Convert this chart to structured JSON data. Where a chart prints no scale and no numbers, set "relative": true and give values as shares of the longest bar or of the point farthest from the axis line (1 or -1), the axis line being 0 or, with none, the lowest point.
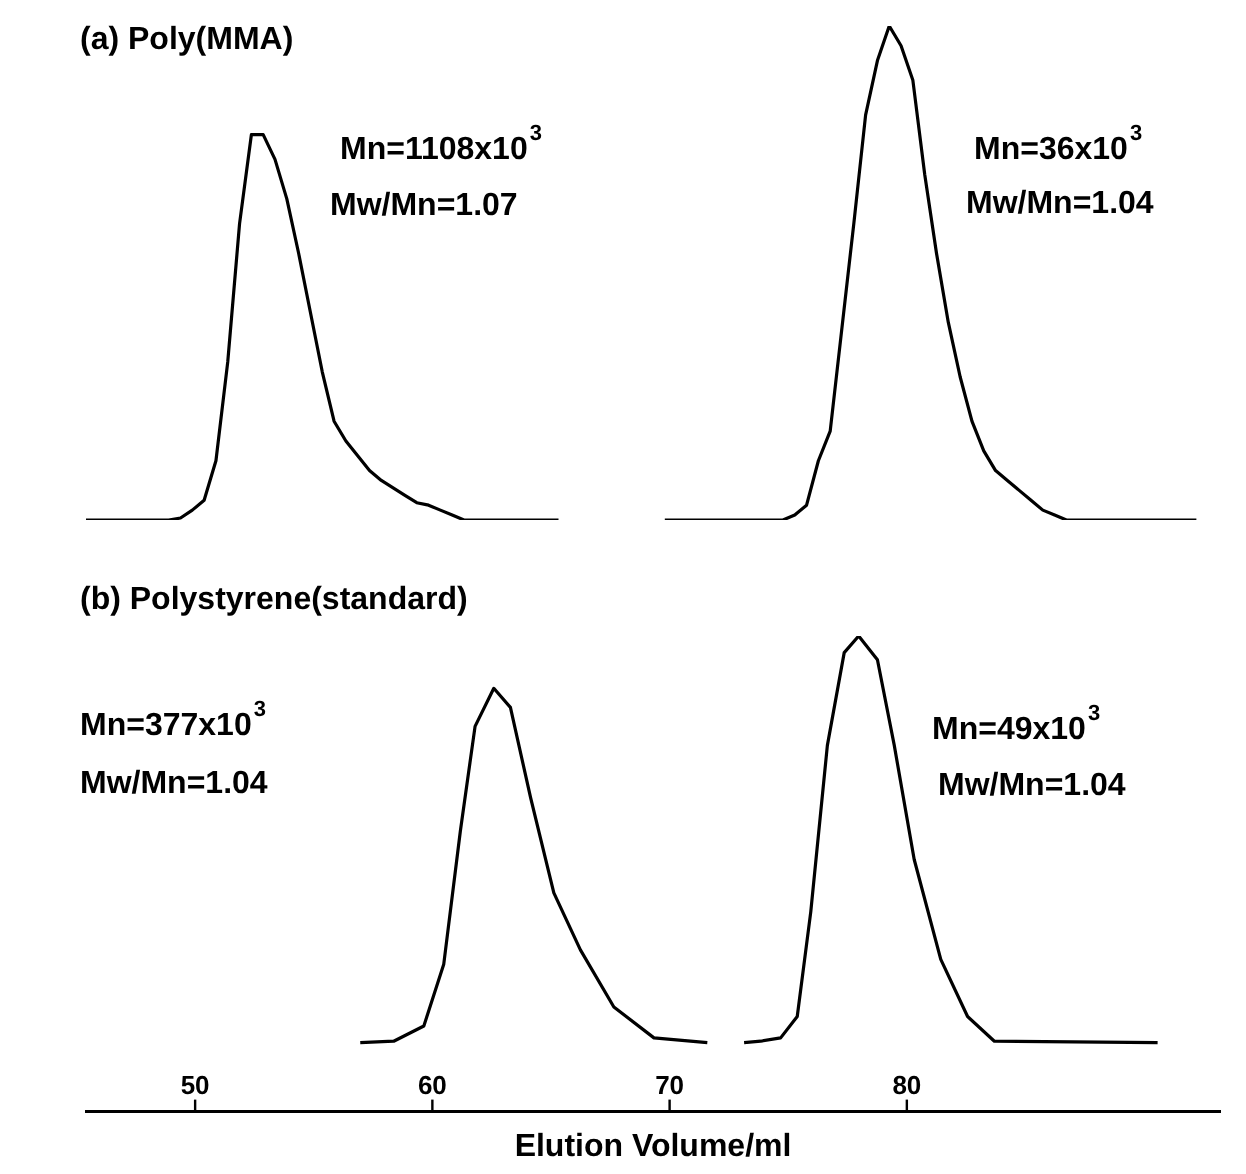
{
  "chart_data": [
    {
      "type": "line",
      "title": "(a) Poly(MMA)",
      "relative": true,
      "tick_labels": false,
      "grid": false,
      "legend": false,
      "marker": "none",
      "line_style": "solid",
      "categories": [
        null,
        null,
        null,
        null,
        null,
        null,
        null,
        null,
        null,
        null,
        null,
        null,
        null,
        null,
        null,
        null,
        null,
        null,
        null,
        null,
        null,
        null,
        null,
        null,
        null,
        null,
        null,
        null,
        null,
        null,
        null,
        null,
        null,
        null,
        null,
        null,
        null,
        null,
        null,
        null,
        null,
        null,
        null,
        null,
        null,
        null,
        null,
        null,
        null,
        null,
        null,
        null,
        null,
        null,
        null,
        null,
        null,
        null,
        null,
        null,
        null,
        null,
        null,
        null,
        null,
        null,
        null,
        null,
        null,
        null,
        null,
        null,
        null,
        null,
        null,
        null,
        null,
        null,
        null,
        null,
        null,
        null,
        null,
        null,
        null,
        null,
        null,
        null,
        null,
        null,
        null,
        null,
        null,
        null,
        null,
        null,
        null
      ],
      "series": [
        {
          "color": "#000000",
          "values": [
            0,
            0,
            0,
            0,
            0,
            0,
            0,
            0,
            0.004,
            0.02,
            0.04,
            0.12,
            0.32,
            0.6,
            0.78,
            0.78,
            0.73,
            0.65,
            0.54,
            0.42,
            0.3,
            0.2,
            0.16,
            0.13,
            0.1,
            0.08,
            0.065,
            0.05,
            0.035,
            0.03,
            0.02,
            0.01,
            0,
            0,
            0,
            0,
            0,
            0,
            0,
            0,
            0,
            null,
            null,
            null,
            null,
            null,
            null,
            null,
            null,
            null,
            null,
            null,
            null,
            null,
            null,
            null,
            null,
            null,
            null,
            null,
            null,
            null,
            null,
            null,
            null,
            null,
            null,
            null,
            null,
            null,
            null,
            null,
            null,
            null,
            null,
            null,
            null,
            null,
            null,
            null,
            null,
            null,
            null,
            null,
            null,
            null,
            null,
            null,
            null,
            null,
            null,
            null,
            null,
            null,
            null,
            null,
            null
          ]
        },
        {
          "color": "#000000",
          "values": [
            null,
            null,
            null,
            null,
            null,
            null,
            null,
            null,
            null,
            null,
            null,
            null,
            null,
            null,
            null,
            null,
            null,
            null,
            null,
            null,
            null,
            null,
            null,
            null,
            null,
            null,
            null,
            null,
            null,
            null,
            null,
            null,
            null,
            null,
            null,
            null,
            null,
            null,
            null,
            null,
            null,
            null,
            null,
            null,
            null,
            null,
            null,
            null,
            null,
            0,
            0,
            0,
            0,
            0,
            0,
            0,
            0,
            0,
            0,
            0,
            0.01,
            0.03,
            0.12,
            0.18,
            0.39,
            0.6,
            0.82,
            0.93,
            1,
            0.96,
            0.89,
            0.7,
            0.54,
            0.4,
            0.29,
            0.2,
            0.14,
            0.1,
            0.08,
            0.06,
            0.04,
            0.02,
            0.01,
            0,
            0,
            0,
            0,
            0,
            0,
            0,
            0,
            0,
            0,
            0,
            0,
            null,
            null
          ]
        }
      ],
      "annotations": [
        "Mn=1108x10$^{3}$",
        "Mw/Mn=1.07",
        "Mn=36x10$^{3}$",
        "Mw/Mn=1.04"
      ]
    },
    {
      "type": "line",
      "title": "(b) Polystyrene(standard)",
      "xlabel": "Elution Volume/ml",
      "relative": true,
      "xlim": [
        45.4,
        93.2
      ],
      "xticks": [
        50,
        60,
        70,
        80
      ],
      "grid": false,
      "legend": false,
      "marker": "none",
      "line_style": "solid",
      "series": [
        {
          "color": "#000000",
          "x": [
            56.96,
            58.37,
            59.64,
            60.48,
            61.18,
            61.8,
            62.59,
            63.29,
            64.14,
            65.12,
            66.24,
            67.65,
            69.34,
            71.59
          ],
          "values": [
            0.145,
            0.148,
            0.18,
            0.31,
            0.59,
            0.81,
            0.89,
            0.85,
            0.66,
            0.46,
            0.34,
            0.22,
            0.155,
            0.145
          ]
        },
        {
          "color": "#000000",
          "x": [
            73.14,
            73.84,
            74.68,
            75.38,
            75.95,
            76.65,
            77.36,
            77.97,
            78.76,
            79.47,
            80.31,
            81.43,
            82.56,
            83.69,
            90.57
          ],
          "values": [
            0.145,
            0.148,
            0.155,
            0.2,
            0.42,
            0.77,
            0.965,
            1,
            0.95,
            0.77,
            0.53,
            0.32,
            0.2,
            0.148,
            0.145
          ]
        }
      ],
      "annotations": [
        "Mn=377x10$^{3}$",
        "Mw/Mn=1.04",
        "Mn=49x10$^{3}$",
        "Mw/Mn=1.04"
      ]
    }
  ]
}
